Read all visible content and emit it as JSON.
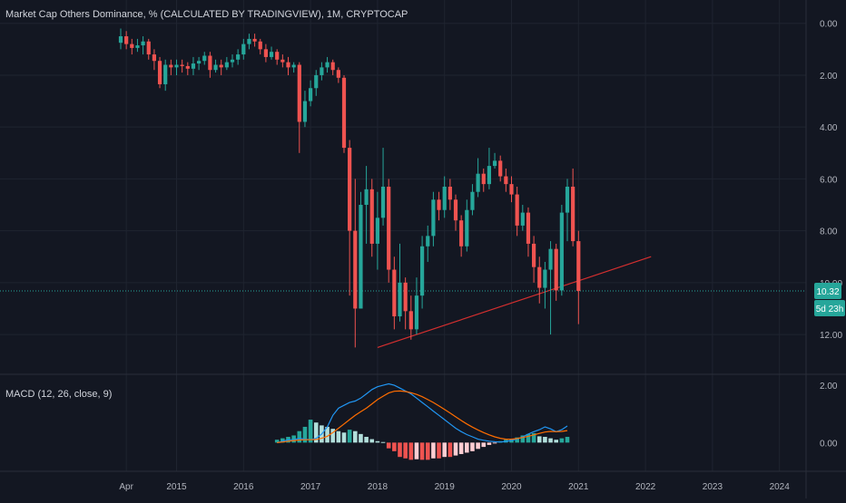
{
  "header": {
    "title": "Market Cap Others Dominance, % (CALCULATED BY TRADINGVIEW), 1M, CRYPTOCAP"
  },
  "macd_label": "MACD (12, 26, close, 9)",
  "price_tag": {
    "value": "10.32",
    "countdown": "5d 23h"
  },
  "colors": {
    "background": "#131722",
    "up": "#26a69a",
    "down": "#ef5350",
    "macd_line": "#2196f3",
    "signal_line": "#ff6d00",
    "trendline": "#d32f2f",
    "hist_light_up": "#b2dfdb",
    "hist_light_down": "#ffcdd2"
  },
  "chart_data": [
    {
      "type": "candlestick",
      "title": "Market Cap Others Dominance, % (CALCULATED BY TRADINGVIEW), 1M, CRYPTOCAP",
      "y_scale": "inverted",
      "ylim": [
        -0.2,
        13.5
      ],
      "y_ticks": [
        "0.00",
        "2.00",
        "4.00",
        "6.00",
        "8.00",
        "10.00",
        "12.00"
      ],
      "x_ticks": [
        "Apr",
        "2015",
        "2016",
        "2017",
        "2018",
        "2019",
        "2020",
        "2021",
        "2022",
        "2023",
        "2024"
      ],
      "last_value": 10.32,
      "x_start": "2014-03",
      "candles": [
        [
          0.75,
          0.5,
          0.2,
          1.0
        ],
        [
          0.5,
          0.8,
          0.3,
          1.0
        ],
        [
          0.8,
          0.95,
          0.6,
          1.2
        ],
        [
          0.95,
          0.85,
          0.6,
          1.1
        ],
        [
          0.85,
          0.7,
          0.5,
          1.2
        ],
        [
          0.7,
          1.2,
          0.6,
          1.4
        ],
        [
          1.2,
          1.45,
          1.0,
          1.8
        ],
        [
          1.45,
          2.35,
          1.3,
          2.5
        ],
        [
          2.35,
          1.6,
          1.4,
          2.6
        ],
        [
          1.6,
          1.7,
          1.4,
          2.0
        ],
        [
          1.7,
          1.6,
          1.4,
          2.0
        ],
        [
          1.6,
          1.65,
          1.4,
          1.9
        ],
        [
          1.65,
          1.75,
          1.5,
          2.0
        ],
        [
          1.75,
          1.55,
          1.3,
          2.0
        ],
        [
          1.55,
          1.45,
          1.3,
          1.8
        ],
        [
          1.45,
          1.25,
          1.1,
          1.6
        ],
        [
          1.25,
          1.8,
          1.1,
          2.1
        ],
        [
          1.8,
          1.6,
          1.4,
          1.9
        ],
        [
          1.6,
          1.7,
          1.4,
          2.0
        ],
        [
          1.7,
          1.5,
          1.3,
          1.8
        ],
        [
          1.5,
          1.4,
          1.2,
          1.7
        ],
        [
          1.4,
          1.2,
          1.0,
          1.6
        ],
        [
          1.2,
          0.8,
          0.6,
          1.4
        ],
        [
          0.8,
          0.6,
          0.4,
          1.0
        ],
        [
          0.6,
          0.7,
          0.4,
          0.9
        ],
        [
          0.7,
          1.0,
          0.6,
          1.2
        ],
        [
          1.0,
          1.3,
          0.8,
          1.5
        ],
        [
          1.3,
          1.1,
          0.9,
          1.4
        ],
        [
          1.1,
          1.4,
          1.0,
          1.6
        ],
        [
          1.4,
          1.5,
          1.2,
          1.7
        ],
        [
          1.5,
          1.7,
          1.3,
          2.0
        ],
        [
          1.7,
          1.6,
          1.5,
          1.9
        ],
        [
          1.6,
          3.8,
          1.5,
          5.0
        ],
        [
          3.8,
          3.0,
          2.6,
          4.0
        ],
        [
          3.0,
          2.5,
          2.2,
          3.2
        ],
        [
          2.5,
          2.0,
          1.8,
          2.8
        ],
        [
          2.0,
          1.7,
          1.5,
          2.2
        ],
        [
          1.7,
          1.5,
          1.3,
          1.9
        ],
        [
          1.5,
          1.8,
          1.4,
          2.0
        ],
        [
          1.8,
          2.1,
          1.7,
          2.3
        ],
        [
          2.1,
          4.8,
          2.0,
          5.0
        ],
        [
          4.8,
          8.0,
          4.5,
          10.5
        ],
        [
          8.0,
          11.0,
          6.0,
          12.5
        ],
        [
          11.0,
          7.0,
          6.5,
          11.0
        ],
        [
          7.0,
          6.4,
          5.5,
          8.5
        ],
        [
          6.4,
          8.5,
          6.0,
          9.0
        ],
        [
          8.5,
          7.5,
          6.5,
          9.5
        ],
        [
          7.5,
          6.3,
          4.8,
          7.8
        ],
        [
          6.3,
          9.5,
          6.0,
          10.0
        ],
        [
          9.5,
          11.3,
          9.0,
          11.8
        ],
        [
          11.3,
          10.0,
          8.5,
          11.5
        ],
        [
          10.0,
          11.1,
          9.8,
          11.8
        ],
        [
          11.1,
          11.8,
          10.5,
          12.2
        ],
        [
          11.8,
          10.5,
          9.8,
          12.0
        ],
        [
          10.5,
          8.6,
          8.2,
          11.0
        ],
        [
          8.6,
          8.2,
          7.8,
          9.2
        ],
        [
          8.2,
          6.8,
          6.5,
          8.6
        ],
        [
          6.8,
          7.2,
          6.5,
          7.6
        ],
        [
          7.2,
          6.3,
          5.9,
          7.5
        ],
        [
          6.3,
          6.8,
          6.0,
          7.2
        ],
        [
          6.8,
          7.6,
          6.6,
          8.0
        ],
        [
          7.6,
          8.6,
          7.4,
          9.0
        ],
        [
          8.6,
          7.2,
          6.8,
          8.8
        ],
        [
          7.2,
          6.5,
          6.2,
          7.4
        ],
        [
          6.5,
          5.8,
          5.2,
          6.7
        ],
        [
          5.8,
          6.2,
          5.6,
          6.5
        ],
        [
          6.2,
          5.5,
          4.8,
          6.4
        ],
        [
          5.5,
          5.3,
          5.0,
          5.6
        ],
        [
          5.3,
          5.9,
          5.1,
          6.1
        ],
        [
          5.9,
          6.2,
          5.6,
          6.5
        ],
        [
          6.2,
          6.6,
          5.9,
          6.9
        ],
        [
          6.6,
          7.8,
          6.3,
          8.2
        ],
        [
          7.8,
          7.3,
          7.0,
          8.0
        ],
        [
          7.3,
          8.5,
          7.1,
          9.0
        ],
        [
          8.5,
          9.4,
          8.2,
          10.0
        ],
        [
          9.4,
          10.2,
          9.0,
          10.8
        ],
        [
          10.2,
          9.5,
          9.2,
          11.0
        ],
        [
          9.5,
          8.7,
          8.4,
          12.0
        ],
        [
          8.7,
          10.3,
          8.5,
          10.7
        ],
        [
          10.3,
          7.3,
          7.0,
          10.5
        ],
        [
          7.3,
          6.3,
          6.0,
          8.4
        ],
        [
          6.3,
          8.4,
          5.6,
          8.6
        ],
        [
          8.4,
          10.32,
          8.0,
          11.6
        ]
      ]
    },
    {
      "type": "macd",
      "title": "MACD (12, 26, close, 9)",
      "ylim": [
        -1.0,
        2.35
      ],
      "y_ticks": [
        "2.00",
        "0.00"
      ],
      "x_start": "2016-07",
      "macd": [
        0.0,
        0.05,
        0.1,
        0.1,
        0.15,
        0.12,
        0.1,
        0.15,
        0.3,
        0.55,
        0.95,
        1.2,
        1.3,
        1.4,
        1.45,
        1.55,
        1.7,
        1.85,
        1.95,
        2.0,
        2.05,
        2.0,
        1.9,
        1.8,
        1.7,
        1.55,
        1.4,
        1.25,
        1.1,
        0.95,
        0.8,
        0.65,
        0.5,
        0.38,
        0.28,
        0.2,
        0.12,
        0.08,
        0.05,
        0.03,
        0.02,
        0.04,
        0.08,
        0.12,
        0.2,
        0.3,
        0.38,
        0.45,
        0.55,
        0.48,
        0.38,
        0.45,
        0.58
      ],
      "signal": [
        0.0,
        0.02,
        0.05,
        0.07,
        0.09,
        0.1,
        0.1,
        0.11,
        0.15,
        0.22,
        0.35,
        0.5,
        0.65,
        0.8,
        0.95,
        1.08,
        1.2,
        1.35,
        1.5,
        1.62,
        1.73,
        1.79,
        1.8,
        1.78,
        1.74,
        1.68,
        1.6,
        1.5,
        1.4,
        1.28,
        1.16,
        1.03,
        0.9,
        0.77,
        0.65,
        0.54,
        0.44,
        0.35,
        0.27,
        0.2,
        0.15,
        0.12,
        0.12,
        0.14,
        0.18,
        0.22,
        0.27,
        0.32,
        0.37,
        0.39,
        0.38,
        0.39,
        0.42
      ],
      "histogram": [
        0.1,
        0.15,
        0.2,
        0.25,
        0.4,
        0.55,
        0.8,
        0.7,
        0.6,
        0.55,
        0.48,
        0.4,
        0.35,
        0.45,
        0.4,
        0.3,
        0.2,
        0.12,
        0.05,
        0.02,
        -0.2,
        -0.3,
        -0.5,
        -0.55,
        -0.6,
        -0.58,
        -0.6,
        -0.6,
        -0.55,
        -0.55,
        -0.5,
        -0.5,
        -0.45,
        -0.4,
        -0.35,
        -0.3,
        -0.22,
        -0.15,
        -0.08,
        -0.02,
        0.05,
        0.1,
        0.12,
        0.18,
        0.25,
        0.3,
        0.33,
        0.22,
        0.2,
        0.15,
        0.1,
        0.15,
        0.2
      ],
      "series": [
        {
          "values_key": "macd"
        },
        {
          "values_key": "signal"
        },
        {
          "values_key": "histogram"
        }
      ]
    }
  ]
}
